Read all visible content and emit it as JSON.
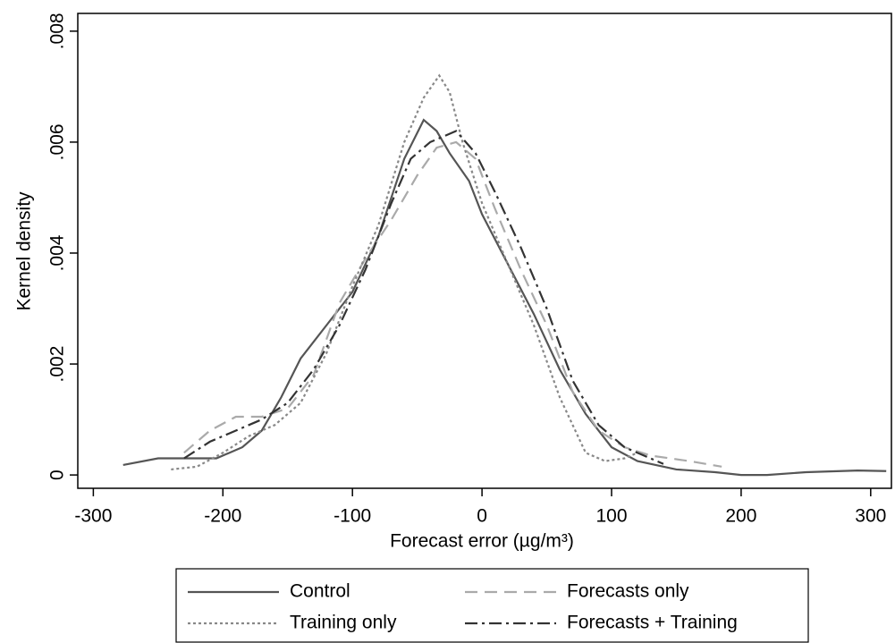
{
  "chart_data": {
    "type": "line",
    "x_label": "Forecast error (µg/m³)",
    "y_label": "Kernel density",
    "xlim": [
      -312,
      316
    ],
    "xticks": [
      -300,
      -200,
      -100,
      0,
      100,
      200,
      300
    ],
    "ylim": [
      -0.00024,
      0.00832
    ],
    "yticks": [
      0,
      {
        "value": 0.002,
        "label": ".002"
      },
      {
        "value": 0.004,
        "label": ".004"
      },
      {
        "value": 0.006,
        "label": ".006"
      },
      {
        "value": 0.008,
        "label": ".008"
      }
    ],
    "series": [
      {
        "name": "Control",
        "color": "#555555",
        "dash": "none",
        "x": [
          -277,
          -250,
          -220,
          -205,
          -185,
          -170,
          -155,
          -140,
          -120,
          -100,
          -80,
          -60,
          -45,
          -35,
          -25,
          -10,
          0,
          20,
          40,
          60,
          80,
          100,
          120,
          150,
          180,
          200,
          220,
          250,
          290,
          312
        ],
        "values": [
          0.00018,
          0.0003,
          0.0003,
          0.0003,
          0.0005,
          0.0008,
          0.0014,
          0.0021,
          0.0027,
          0.0033,
          0.0043,
          0.0057,
          0.0064,
          0.0062,
          0.0058,
          0.0053,
          0.0047,
          0.0038,
          0.0029,
          0.0019,
          0.0011,
          0.0005,
          0.00025,
          0.0001,
          5e-05,
          0.0,
          0.0,
          5e-05,
          8e-05,
          7e-05
        ]
      },
      {
        "name": "Forecasts only",
        "color": "#aaaaaa",
        "dash": "14,8",
        "x": [
          -230,
          -210,
          -190,
          -170,
          -150,
          -130,
          -110,
          -90,
          -70,
          -50,
          -35,
          -20,
          -5,
          10,
          30,
          50,
          70,
          90,
          110,
          130,
          160,
          185
        ],
        "values": [
          0.0004,
          0.0008,
          0.00105,
          0.00105,
          0.0012,
          0.0018,
          0.0031,
          0.0039,
          0.0046,
          0.0054,
          0.0059,
          0.006,
          0.0057,
          0.0048,
          0.0037,
          0.0027,
          0.0015,
          0.0008,
          0.0005,
          0.00035,
          0.00025,
          0.00015
        ]
      },
      {
        "name": "Training only",
        "color": "#888888",
        "dash": "3,3",
        "x": [
          -240,
          -220,
          -200,
          -180,
          -160,
          -140,
          -120,
          -100,
          -80,
          -60,
          -45,
          -33,
          -25,
          -15,
          0,
          20,
          40,
          60,
          80,
          95,
          110,
          120
        ],
        "values": [
          0.0001,
          0.00015,
          0.0004,
          0.0007,
          0.0009,
          0.0013,
          0.0022,
          0.0034,
          0.0045,
          0.006,
          0.0068,
          0.0072,
          0.0069,
          0.006,
          0.0049,
          0.0038,
          0.0027,
          0.0014,
          0.0004,
          0.00025,
          0.0003,
          0.0004
        ]
      },
      {
        "name": "Forecasts + Training",
        "color": "#333333",
        "dash": "14,5,3,5",
        "x": [
          -230,
          -210,
          -190,
          -170,
          -150,
          -130,
          -110,
          -90,
          -70,
          -55,
          -40,
          -20,
          -5,
          10,
          30,
          50,
          70,
          90,
          110,
          140
        ],
        "values": [
          0.0003,
          0.0006,
          0.0008,
          0.001,
          0.0013,
          0.0019,
          0.0027,
          0.0037,
          0.0049,
          0.0057,
          0.006,
          0.0062,
          0.0058,
          0.0051,
          0.0041,
          0.003,
          0.0017,
          0.0009,
          0.0005,
          0.0002
        ]
      }
    ]
  }
}
